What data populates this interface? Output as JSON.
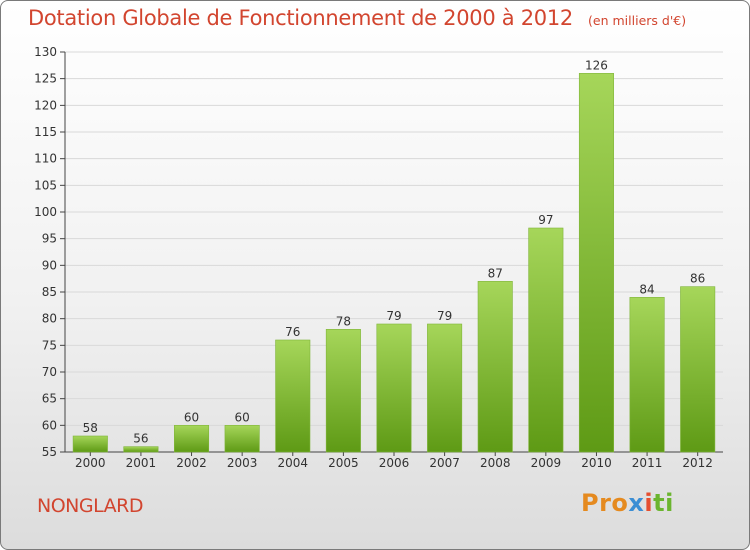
{
  "header": {
    "title": "Dotation Globale de Fonctionnement de 2000 à 2012",
    "unit": "(en milliers d'€)"
  },
  "footer": {
    "commune": "NONGLARD",
    "logo": {
      "p1": "Pro",
      "p2": "x",
      "p3": "i",
      "p4": "ti"
    }
  },
  "colors": {
    "bar_light": "#a6d65a",
    "bar_dark": "#5e9a15",
    "title": "#d2452f",
    "grid": "#d9d9d9"
  },
  "chart_data": {
    "type": "bar",
    "title": "Dotation Globale de Fonctionnement de 2000 à 2012",
    "subtitle": "(en milliers d'€)",
    "xlabel": "",
    "ylabel": "",
    "categories": [
      "2000",
      "2001",
      "2002",
      "2003",
      "2004",
      "2005",
      "2006",
      "2007",
      "2008",
      "2009",
      "2010",
      "2011",
      "2012"
    ],
    "values": [
      58,
      56,
      60,
      60,
      76,
      78,
      79,
      79,
      87,
      97,
      126,
      84,
      86
    ],
    "ylim": [
      55,
      130
    ],
    "yticks": [
      55,
      60,
      65,
      70,
      75,
      80,
      85,
      90,
      95,
      100,
      105,
      110,
      115,
      120,
      125,
      130
    ],
    "grid": true,
    "data_labels": true
  }
}
